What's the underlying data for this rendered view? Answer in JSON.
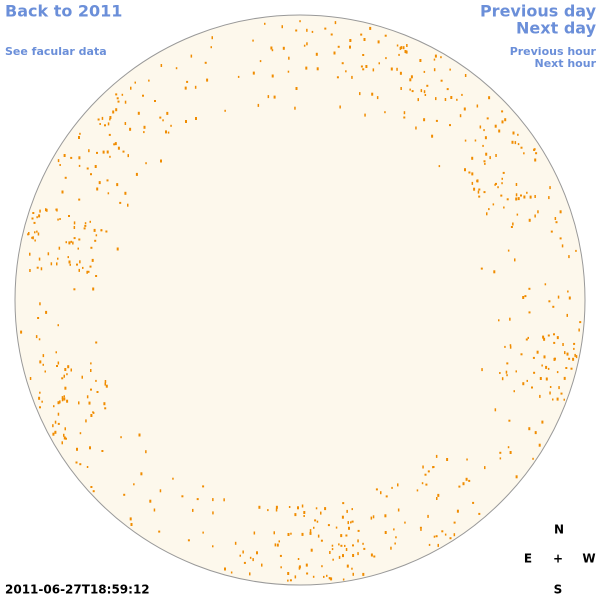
{
  "nav": {
    "back": "Back to 2011",
    "facular_data": "See facular data",
    "previous_day": "Previous day",
    "next_day": "Next day",
    "previous_hour": "Previous hour",
    "next_hour": "Next hour"
  },
  "timestamp": "2011-06-27T18:59:12",
  "compass": {
    "north": "N",
    "east": "E",
    "center": "+",
    "west": "W",
    "south": "S"
  }
}
